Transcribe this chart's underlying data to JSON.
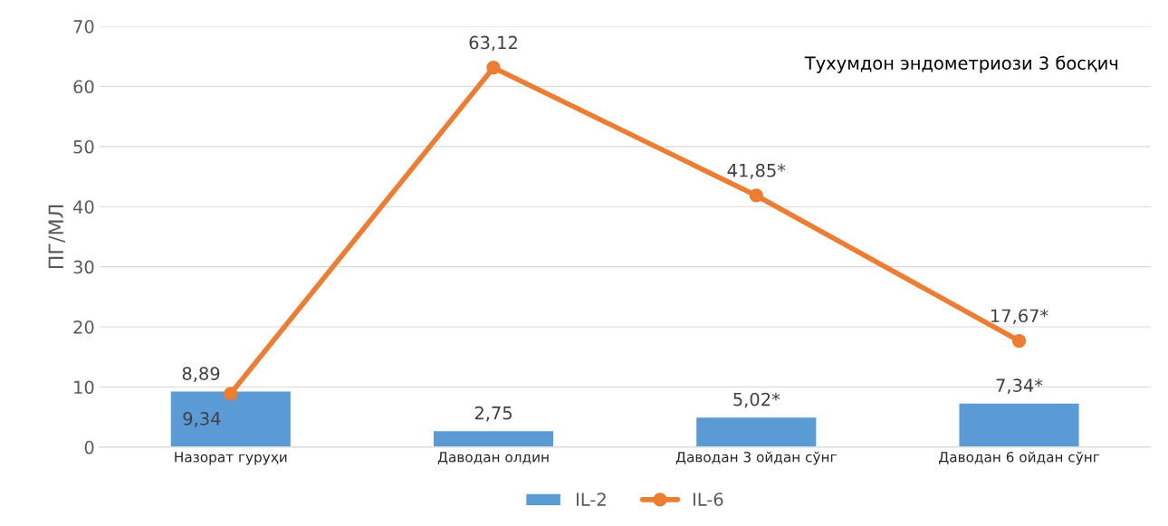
{
  "chart_data": {
    "type": "bar",
    "title": "Тухумдон эндометриози 3 босқич",
    "ylabel": "ПГ/МЛ",
    "categories": [
      "Назорат гуруҳи",
      "Даводан олдин",
      "Даводан 3 ойдан сўнг",
      "Даводан 6 ойдан сўнг"
    ],
    "series": [
      {
        "name": "IL-2",
        "color": "#5b9bd5",
        "values": [
          9.34,
          2.75,
          5.02,
          7.34
        ],
        "value_labels": [
          "9,34",
          "2,75",
          "5,02*",
          "7,34*"
        ]
      },
      {
        "name": "IL-6",
        "type": "line",
        "color": "#ed7d31",
        "marker": "circle",
        "values": [
          8.89,
          63.12,
          41.85,
          17.67
        ],
        "value_labels": [
          "8,89",
          "63,12",
          "41,85*",
          "17,67*"
        ]
      }
    ],
    "ylim": [
      0,
      70
    ],
    "yticks": [
      0,
      10,
      20,
      30,
      40,
      50,
      60,
      70
    ],
    "grid": "y",
    "legend": "bottom"
  }
}
